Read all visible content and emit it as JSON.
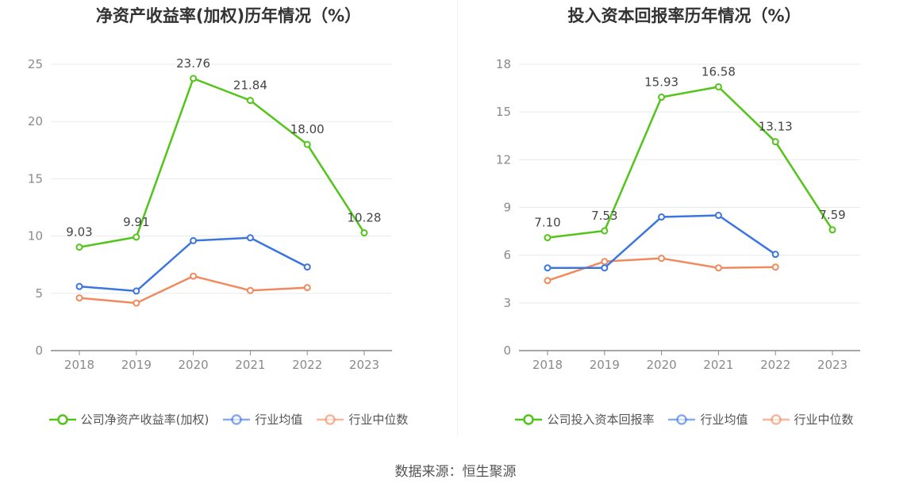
{
  "chart_data": [
    {
      "type": "line",
      "title": "净资产收益率(加权)历年情况（%）",
      "categories": [
        "2018",
        "2019",
        "2020",
        "2021",
        "2022",
        "2023"
      ],
      "ylim": [
        0,
        25
      ],
      "yticks": [
        0,
        5,
        10,
        15,
        20,
        25
      ],
      "grid": true,
      "legend_position": "bottom",
      "series": [
        {
          "name": "公司净资产收益率(加权)",
          "color": "#52c41a",
          "values": [
            9.03,
            9.91,
            23.76,
            21.84,
            18.0,
            10.28
          ],
          "labels": [
            "9.03",
            "9.91",
            "23.76",
            "21.84",
            "18.00",
            "10.28"
          ]
        },
        {
          "name": "行业均值",
          "color": "#3b75e0",
          "values": [
            5.6,
            5.2,
            9.6,
            9.85,
            7.3,
            null
          ]
        },
        {
          "name": "行业中位数",
          "color": "#f08a5d",
          "values": [
            4.6,
            4.15,
            6.5,
            5.25,
            5.5,
            null
          ]
        }
      ]
    },
    {
      "type": "line",
      "title": "投入资本回报率历年情况（%）",
      "categories": [
        "2018",
        "2019",
        "2020",
        "2021",
        "2022",
        "2023"
      ],
      "ylim": [
        0,
        18
      ],
      "yticks": [
        0,
        3,
        6,
        9,
        12,
        15,
        18
      ],
      "grid": true,
      "legend_position": "bottom",
      "series": [
        {
          "name": "公司投入资本回报率",
          "color": "#52c41a",
          "values": [
            7.1,
            7.53,
            15.93,
            16.58,
            13.13,
            7.59
          ],
          "labels": [
            "7.10",
            "7.53",
            "15.93",
            "16.58",
            "13.13",
            "7.59"
          ]
        },
        {
          "name": "行业均值",
          "color": "#3b75e0",
          "values": [
            5.2,
            5.2,
            8.4,
            8.5,
            6.05,
            null
          ]
        },
        {
          "name": "行业中位数",
          "color": "#f08a5d",
          "values": [
            4.4,
            5.6,
            5.8,
            5.2,
            5.25,
            null
          ]
        }
      ]
    }
  ],
  "source": "数据来源：恒生聚源"
}
